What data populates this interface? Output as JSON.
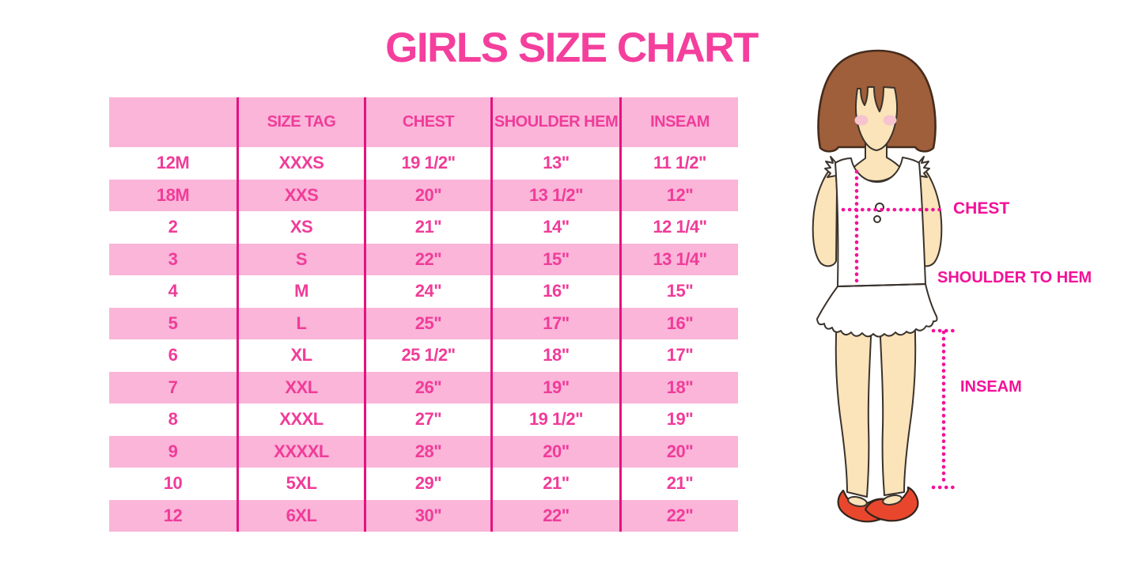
{
  "title": {
    "text": "GIRLS SIZE CHART",
    "color": "#F43F9D"
  },
  "table": {
    "columns": [
      "",
      "SIZE TAG",
      "CHEST",
      "SHOULDER HEM",
      "INSEAM"
    ],
    "rows": [
      [
        "12M",
        "XXXS",
        "19 1/2\"",
        "13\"",
        "11 1/2\""
      ],
      [
        "18M",
        "XXS",
        "20\"",
        "13 1/2\"",
        "12\""
      ],
      [
        "2",
        "XS",
        "21\"",
        "14\"",
        "12 1/4\""
      ],
      [
        "3",
        "S",
        "22\"",
        "15\"",
        "13 1/4\""
      ],
      [
        "4",
        "M",
        "24\"",
        "16\"",
        "15\""
      ],
      [
        "5",
        "L",
        "25\"",
        "17\"",
        "16\""
      ],
      [
        "6",
        "XL",
        "25 1/2\"",
        "18\"",
        "17\""
      ],
      [
        "7",
        "XXL",
        "26\"",
        "19\"",
        "18\""
      ],
      [
        "8",
        "XXXL",
        "27\"",
        "19 1/2\"",
        "19\""
      ],
      [
        "9",
        "XXXXL",
        "28\"",
        "20\"",
        "20\""
      ],
      [
        "10",
        "5XL",
        "29\"",
        "21\"",
        "21\""
      ],
      [
        "12",
        "6XL",
        "30\"",
        "22\"",
        "22\""
      ]
    ],
    "stripe_color": "#FAB5D9",
    "line_color": "#E5127F",
    "text_color": "#F03C99"
  },
  "figure": {
    "annotations": {
      "chest": "CHEST",
      "shoulder_to_hem": "SHOULDER TO HEM",
      "inseam": "INSEAM"
    },
    "label_color": "#F31099",
    "colors": {
      "hair": "#9F5F3A",
      "skin": "#FBE3BA",
      "blush": "#F6C3CF",
      "shoe": "#E9472D",
      "dotted_line": "#F5109B"
    }
  }
}
